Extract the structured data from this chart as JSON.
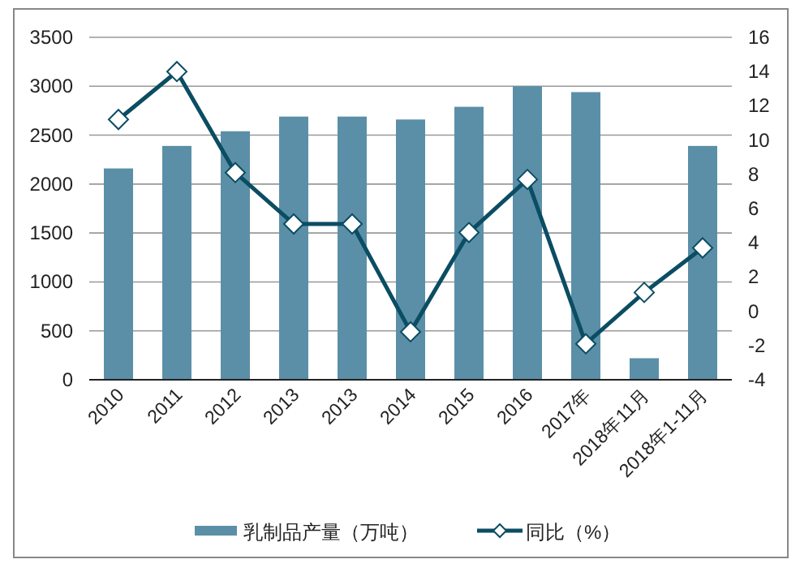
{
  "chart_data": {
    "type": "bar",
    "categories": [
      "2010",
      "2011",
      "2012",
      "2013",
      "2013",
      "2014",
      "2015",
      "2016",
      "2017年",
      "2018年11月",
      "2018年1-11月"
    ],
    "series": [
      {
        "name": "乳制品产量（万吨）",
        "color": "#5b8fa8",
        "values": [
          2160,
          2390,
          2540,
          2690,
          2690,
          2660,
          2790,
          3000,
          2940,
          220,
          2390
        ]
      },
      {
        "name": "同比（%）",
        "type": "line",
        "axis": "y2",
        "color": "#0b4d63",
        "marker": "diamond",
        "values": [
          11.2,
          14.0,
          8.1,
          5.1,
          5.1,
          -1.2,
          4.6,
          7.7,
          -1.9,
          1.1,
          3.7
        ]
      }
    ],
    "ylim": [
      0,
      3500
    ],
    "yticks": [
      0,
      500,
      1000,
      1500,
      2000,
      2500,
      3000,
      3500
    ],
    "y2lim": [
      -4,
      16
    ],
    "y2ticks": [
      -4,
      -2,
      0,
      2,
      4,
      6,
      8,
      10,
      12,
      14,
      16
    ],
    "grid": "y",
    "legend": "bottom"
  }
}
